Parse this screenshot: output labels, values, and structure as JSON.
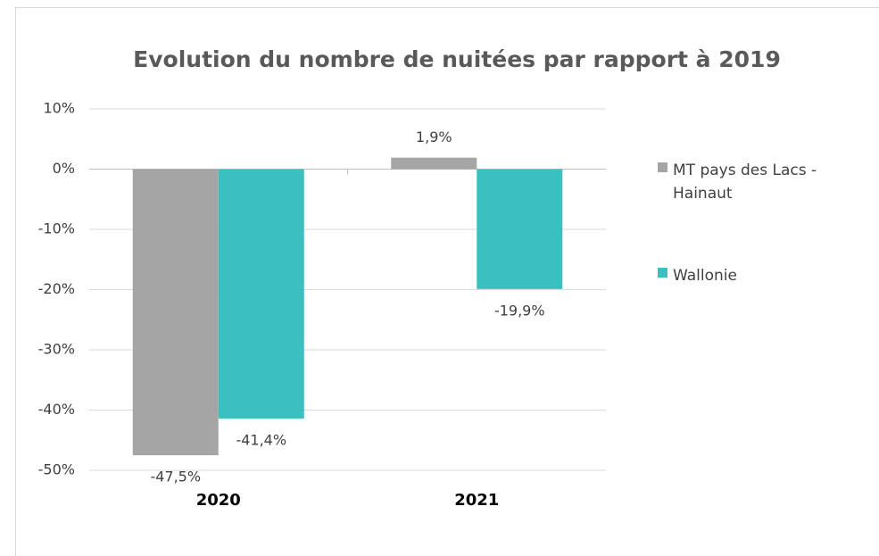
{
  "chart_data": {
    "type": "bar",
    "title": "Evolution du nombre de nuitées par rapport à 2019",
    "categories": [
      "2020",
      "2021"
    ],
    "series": [
      {
        "name": "MT pays des Lacs - Hainaut",
        "color": "#a5a5a5",
        "values": [
          -47.5,
          1.9
        ],
        "value_labels": [
          "-47,5%",
          "1,9%"
        ]
      },
      {
        "name": "Wallonie",
        "color": "#3bbfbf",
        "values": [
          -41.4,
          -19.9
        ],
        "value_labels": [
          "-41,4%",
          "-19,9%"
        ]
      }
    ],
    "ylim": [
      -50,
      10
    ],
    "yticks": [
      {
        "value": -50,
        "label": "-50%"
      },
      {
        "value": -40,
        "label": "-40%"
      },
      {
        "value": -30,
        "label": "-30%"
      },
      {
        "value": -20,
        "label": "-20%"
      },
      {
        "value": -10,
        "label": "-10%"
      },
      {
        "value": 0,
        "label": "0%"
      },
      {
        "value": 10,
        "label": "10%"
      }
    ],
    "grid": true,
    "legend": "right"
  }
}
